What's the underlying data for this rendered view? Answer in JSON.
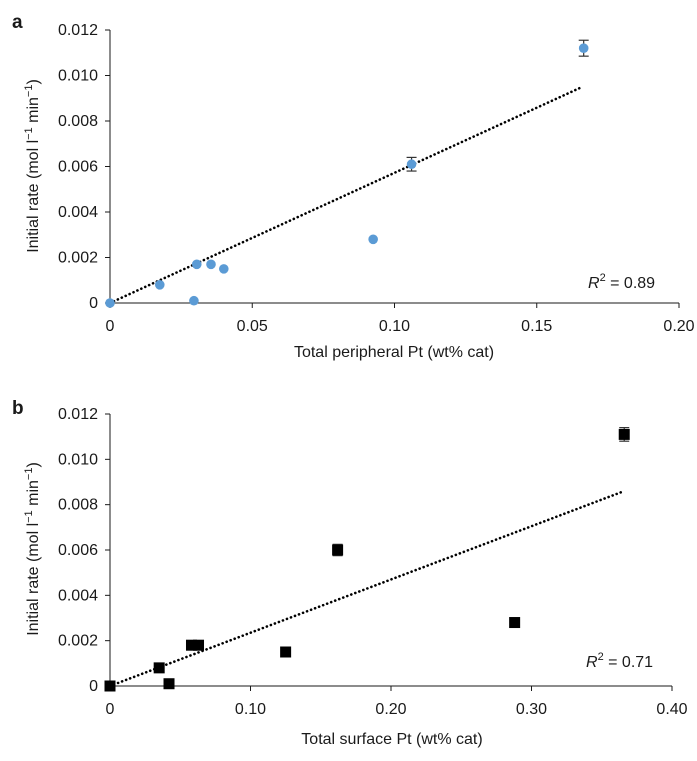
{
  "chart_data": [
    {
      "panel": "a",
      "type": "scatter",
      "xlabel": "Total peripheral Pt (wt% cat)",
      "ylabel_main": "Initial rate (mol l",
      "ylabel_sup1": "−1",
      "ylabel_mid": " min",
      "ylabel_sup2": "−1",
      "ylabel_end": ")",
      "xlim": [
        0,
        0.2
      ],
      "ylim": [
        0,
        0.012
      ],
      "xticks": [
        "0",
        "0.05",
        "0.10",
        "0.15",
        "0.20"
      ],
      "xtick_values": [
        0,
        0.05,
        0.1,
        0.15,
        0.2
      ],
      "yticks": [
        "0",
        "0.002",
        "0.004",
        "0.006",
        "0.008",
        "0.010",
        "0.012"
      ],
      "ytick_values": [
        0,
        0.002,
        0.004,
        0.006,
        0.008,
        0.01,
        0.012
      ],
      "marker": "circle",
      "marker_color": "#5b9bd5",
      "points": [
        {
          "x": 0.0,
          "y": 0.0,
          "err": 0
        },
        {
          "x": 0.0175,
          "y": 0.0008,
          "err": 0
        },
        {
          "x": 0.0295,
          "y": 0.0001,
          "err": 0
        },
        {
          "x": 0.0305,
          "y": 0.0017,
          "err": 0
        },
        {
          "x": 0.0355,
          "y": 0.0017,
          "err": 0
        },
        {
          "x": 0.04,
          "y": 0.0015,
          "err": 0
        },
        {
          "x": 0.0925,
          "y": 0.0028,
          "err": 0
        },
        {
          "x": 0.106,
          "y": 0.0061,
          "err": 0.0003
        },
        {
          "x": 0.1665,
          "y": 0.0112,
          "err": 0.00035
        }
      ],
      "fit_line": {
        "x": [
          0,
          0.166
        ],
        "y": [
          0,
          0.0095
        ]
      },
      "r2_label": "R",
      "r2_sup": "2",
      "r2_value": " = 0.89"
    },
    {
      "panel": "b",
      "type": "scatter",
      "xlabel": "Total surface Pt (wt% cat)",
      "ylabel_main": "Initial rate (mol l",
      "ylabel_sup1": "−1",
      "ylabel_mid": " min",
      "ylabel_sup2": "−1",
      "ylabel_end": ")",
      "xlim": [
        0,
        0.4
      ],
      "ylim": [
        0,
        0.012
      ],
      "xticks": [
        "0",
        "0.10",
        "0.20",
        "0.30",
        "0.40"
      ],
      "xtick_values": [
        0,
        0.1,
        0.2,
        0.3,
        0.4
      ],
      "yticks": [
        "0",
        "0.002",
        "0.004",
        "0.006",
        "0.008",
        "0.010",
        "0.012"
      ],
      "ytick_values": [
        0,
        0.002,
        0.004,
        0.006,
        0.008,
        0.01,
        0.012
      ],
      "marker": "square",
      "marker_color": "#000000",
      "points": [
        {
          "x": 0.0,
          "y": 0.0,
          "err": 0
        },
        {
          "x": 0.035,
          "y": 0.0008,
          "err": 0
        },
        {
          "x": 0.042,
          "y": 0.0001,
          "err": 0
        },
        {
          "x": 0.058,
          "y": 0.0018,
          "err": 0
        },
        {
          "x": 0.063,
          "y": 0.0018,
          "err": 0
        },
        {
          "x": 0.125,
          "y": 0.0015,
          "err": 0
        },
        {
          "x": 0.162,
          "y": 0.006,
          "err": 0.00025
        },
        {
          "x": 0.288,
          "y": 0.0028,
          "err": 0
        },
        {
          "x": 0.366,
          "y": 0.0111,
          "err": 0.0003
        }
      ],
      "fit_line": {
        "x": [
          0,
          0.366
        ],
        "y": [
          0,
          0.0086
        ]
      },
      "r2_label": "R",
      "r2_sup": "2",
      "r2_value": " = 0.71"
    }
  ]
}
